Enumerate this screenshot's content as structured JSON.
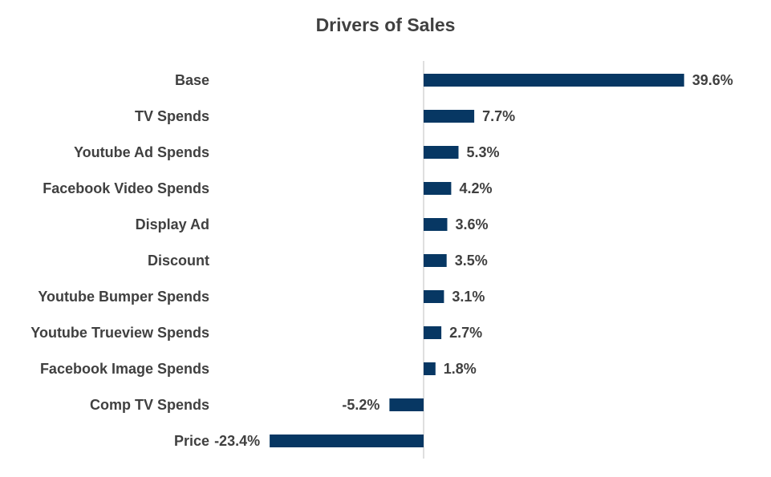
{
  "chart_data": {
    "type": "bar",
    "orientation": "horizontal",
    "title": "Drivers of Sales",
    "xlabel": "",
    "ylabel": "",
    "categories": [
      "Base",
      "TV Spends",
      "Youtube Ad Spends",
      "Facebook Video Spends",
      "Display Ad",
      "Discount ",
      "Youtube Bumper Spends",
      "Youtube Trueview Spends",
      "Facebook Image Spends",
      "Comp TV Spends",
      "Price"
    ],
    "values": [
      39.6,
      7.7,
      5.3,
      4.2,
      3.6,
      3.5,
      3.1,
      2.7,
      1.8,
      -5.2,
      -23.4
    ],
    "data_labels": [
      "39.6%",
      "7.7%",
      "5.3%",
      "4.2%",
      "3.6%",
      "3.5%",
      "3.1%",
      "2.7%",
      "1.8%",
      "-5.2%",
      "-23.4%"
    ],
    "value_unit": "%",
    "xlim": [
      -23.4,
      39.6
    ],
    "grid": false,
    "legend": "none",
    "bar_color": "#073763",
    "axis_color": "#bfbfbf"
  }
}
